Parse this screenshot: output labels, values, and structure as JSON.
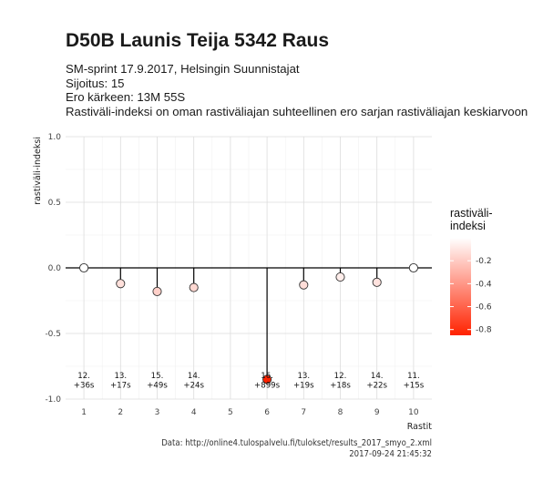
{
  "title": "D50B Launis Teija 5342 Raus",
  "subtitle": [
    "SM-sprint 17.9.2017, Helsingin Suunnistajat",
    "Sijoitus: 15",
    "Ero kärkeen: 13M 55S",
    "Rastiväli-indeksi on oman rastiväliajan suhteellinen ero sarjan rastiväliajan keskiarvoon"
  ],
  "caption": [
    "Data: http://online4.tulospalvelu.fi/tulokset/results_2017_smyo_2.xml",
    "2017-09-24 21:45:32"
  ],
  "colors": {
    "low": "#ff2200",
    "high": "#ffffff",
    "stroke": "#333333"
  },
  "chart_data": {
    "type": "scatter",
    "xlabel": "Rastit",
    "ylabel": "rastiväli-indeksi",
    "x_ticks": [
      "1",
      "2",
      "3",
      "4",
      "5",
      "6",
      "7",
      "8",
      "9",
      "10"
    ],
    "xlim": [
      0.5,
      10.5
    ],
    "ylim": [
      -1.0,
      1.0
    ],
    "y_ticks": [
      1.0,
      0.5,
      0.0,
      -0.5,
      -1.0
    ],
    "y_tick_labels": [
      "1.0",
      "0.5",
      "0.0",
      "-0.5",
      "-1.0"
    ],
    "grid": true,
    "points": [
      {
        "x": 1,
        "y": 0.0,
        "label1": "12.",
        "label2": "+36s"
      },
      {
        "x": 2,
        "y": -0.12,
        "label1": "13.",
        "label2": "+17s"
      },
      {
        "x": 3,
        "y": -0.18,
        "label1": "15.",
        "label2": "+49s"
      },
      {
        "x": 4,
        "y": -0.15,
        "label1": "14.",
        "label2": "+24s"
      },
      {
        "x": 6,
        "y": -0.85,
        "label1": "16.",
        "label2": "+899s"
      },
      {
        "x": 7,
        "y": -0.13,
        "label1": "13.",
        "label2": "+19s"
      },
      {
        "x": 8,
        "y": -0.07,
        "label1": "12.",
        "label2": "+18s"
      },
      {
        "x": 9,
        "y": -0.11,
        "label1": "14.",
        "label2": "+22s"
      },
      {
        "x": 10,
        "y": 0.0,
        "label1": "11.",
        "label2": "+15s"
      }
    ],
    "legend": {
      "title": [
        "rastiväli-",
        "indeksi"
      ],
      "ticks": [
        -0.2,
        -0.4,
        -0.6,
        -0.8
      ],
      "tick_labels": [
        "-0.2",
        "-0.4",
        "-0.6",
        "-0.8"
      ],
      "range": [
        -0.85,
        0.0
      ],
      "placement": "right"
    }
  }
}
